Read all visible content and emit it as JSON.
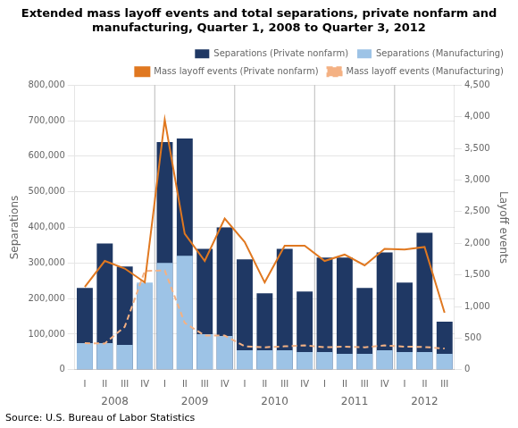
{
  "chart_data": {
    "type": "bar",
    "title": "Extended mass layoff events and total separations, private nonfarm and\nmanufacturing, Quarter 1, 2008 to Quarter 3, 2012",
    "categories": [
      "I",
      "II",
      "III",
      "IV",
      "I",
      "II",
      "III",
      "IV",
      "I",
      "II",
      "III",
      "IV",
      "I",
      "II",
      "III",
      "IV",
      "I",
      "II",
      "III"
    ],
    "series": [
      {
        "name": "Separations (Private nonfarm)",
        "type": "bar",
        "color": "#1f3864",
        "values": [
          230000,
          355000,
          290000,
          240000,
          640000,
          650000,
          340000,
          400000,
          310000,
          215000,
          340000,
          220000,
          315000,
          315000,
          230000,
          330000,
          245000,
          385000,
          135000
        ]
      },
      {
        "name": "Separations (Manufacturing)",
        "type": "bar",
        "color": "#9dc3e6",
        "values": [
          75000,
          75000,
          70000,
          245000,
          300000,
          320000,
          100000,
          95000,
          55000,
          55000,
          55000,
          50000,
          50000,
          45000,
          45000,
          55000,
          50000,
          50000,
          45000
        ]
      },
      {
        "name": "Mass layoff events (Private nonfarm)",
        "type": "line",
        "axis": "y2",
        "color": "#e07820",
        "line_style": "solid",
        "values": [
          1310,
          1720,
          1600,
          1380,
          3950,
          2150,
          1720,
          2390,
          2020,
          1380,
          1960,
          1960,
          1720,
          1820,
          1650,
          1910,
          1900,
          1940,
          900
        ]
      },
      {
        "name": "Mass layoff events (Manufacturing)",
        "type": "line",
        "axis": "y2",
        "color": "#f4b183",
        "line_style": "dashed",
        "values": [
          420,
          415,
          680,
          1560,
          1570,
          740,
          540,
          540,
          370,
          355,
          370,
          385,
          355,
          365,
          355,
          385,
          365,
          360,
          335
        ]
      }
    ],
    "ylabel": "Separations",
    "y2label": "Layoff events",
    "ylim": [
      0,
      800000
    ],
    "yticks": [
      0,
      {
        "value": 100000,
        "label": "100,000"
      },
      {
        "value": 200000,
        "label": "200,000"
      },
      {
        "value": 300000,
        "label": "300,000"
      },
      {
        "value": 400000,
        "label": "400,000"
      },
      {
        "value": 500000,
        "label": "500,000"
      },
      {
        "value": 600000,
        "label": "600,000"
      },
      {
        "value": 700000,
        "label": "700,000"
      },
      {
        "value": 800000,
        "label": "800,000"
      }
    ],
    "y2lim": [
      0,
      4500
    ],
    "y2ticks": [
      0,
      500,
      {
        "value": 1000,
        "label": "1,000"
      },
      {
        "value": 1500,
        "label": "1,500"
      },
      {
        "value": 2000,
        "label": "2,000"
      },
      {
        "value": 2500,
        "label": "2,500"
      },
      {
        "value": 3000,
        "label": "3,000"
      },
      {
        "value": 3500,
        "label": "3,500"
      },
      {
        "value": 4000,
        "label": "4,000"
      },
      {
        "value": 4500,
        "label": "4,500"
      }
    ],
    "grid": true,
    "legend": "upper right",
    "annotations": [
      "2008",
      "2009",
      "2010",
      "2011",
      "2012"
    ],
    "source": "Source: U.S. Bureau of Labor Statistics"
  }
}
